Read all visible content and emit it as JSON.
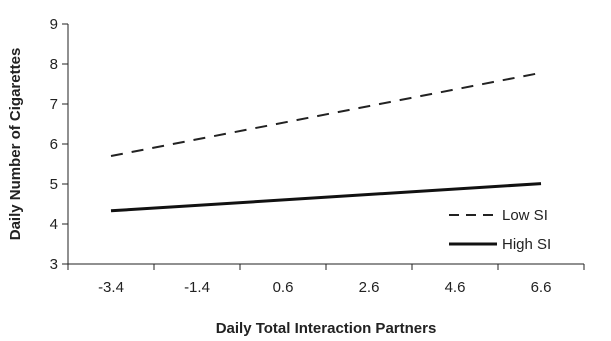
{
  "chart_data": {
    "type": "line",
    "title": "",
    "xlabel": "Daily Total Interaction Partners",
    "ylabel": "Daily Number of Cigarettes",
    "x": [
      -3.4,
      6.6
    ],
    "xticks": [
      "-3.4",
      "-1.4",
      "0.6",
      "2.6",
      "4.6",
      "6.6"
    ],
    "xtick_values": [
      -3.4,
      -1.4,
      0.6,
      2.6,
      4.6,
      6.6
    ],
    "xlim": [
      -4.4,
      7.6
    ],
    "yticks": [
      "3",
      "4",
      "5",
      "6",
      "7",
      "8",
      "9"
    ],
    "ylim": [
      3,
      9
    ],
    "grid": false,
    "legend_position": "right",
    "series": [
      {
        "name": "Low SI",
        "values": [
          5.7,
          7.78
        ],
        "style": "dashed",
        "color": "#222222"
      },
      {
        "name": "High SI",
        "values": [
          4.33,
          5.01
        ],
        "style": "solid",
        "color": "#111111"
      }
    ]
  }
}
